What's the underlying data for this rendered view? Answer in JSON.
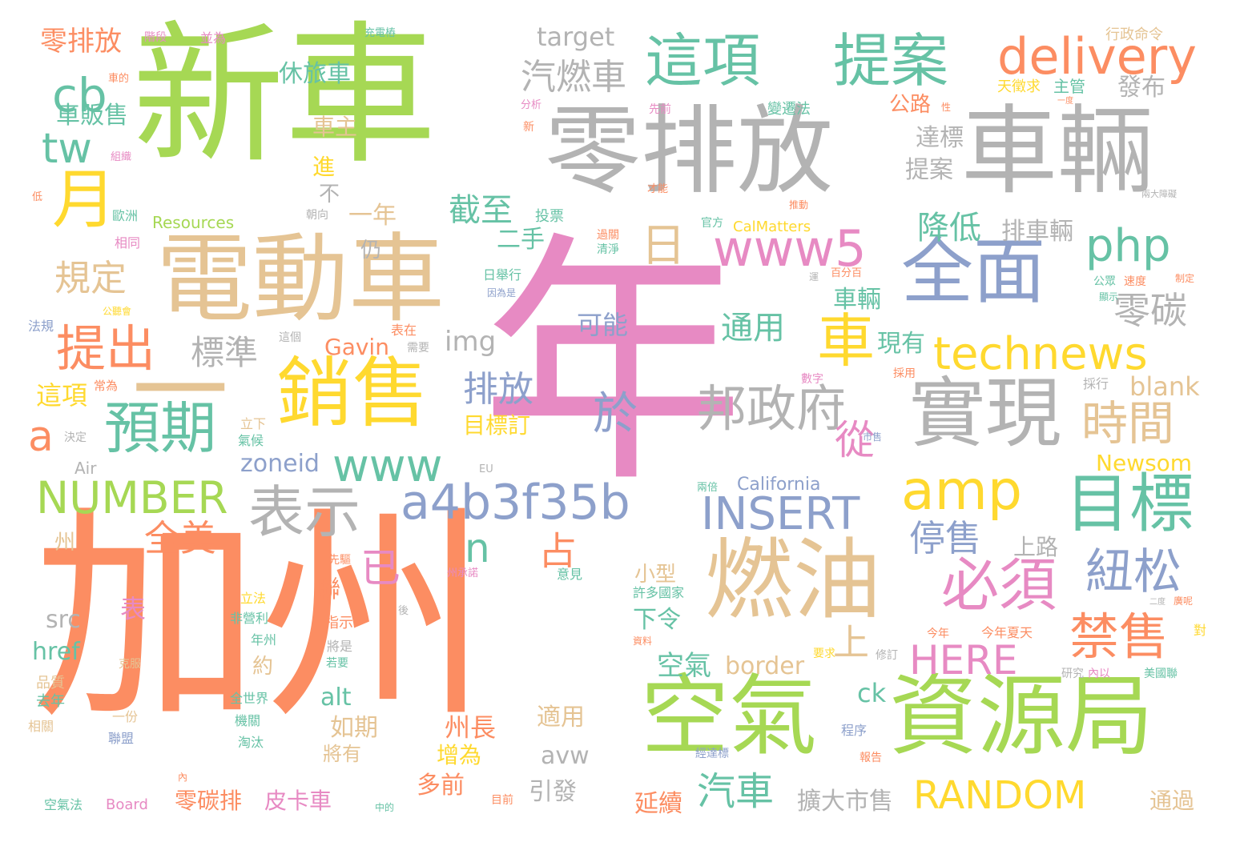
{
  "palette": {
    "pink": "#e78ac3",
    "orange": "#fc8d62",
    "green": "#a6d854",
    "gray": "#b3b3b3",
    "tan": "#e5c494",
    "teal": "#66c2a5",
    "blue": "#8da0cb",
    "yellow": "#ffd92f"
  },
  "words": [
    {
      "text": "年",
      "color": "pink"
    },
    {
      "text": "新車",
      "color": "green"
    },
    {
      "text": "加州",
      "color": "orange"
    },
    {
      "text": "零排放",
      "color": "gray"
    },
    {
      "text": "車輛",
      "color": "gray"
    },
    {
      "text": "電動車",
      "color": "tan"
    },
    {
      "text": "空氣",
      "color": "green"
    },
    {
      "text": "資源局",
      "color": "green"
    },
    {
      "text": "燃油",
      "color": "tan"
    },
    {
      "text": "銷售",
      "color": "yellow"
    },
    {
      "text": "一",
      "color": "tan"
    },
    {
      "text": "實現",
      "color": "gray"
    },
    {
      "text": "全面",
      "color": "blue"
    },
    {
      "text": "這項",
      "color": "teal"
    },
    {
      "text": "提案",
      "color": "teal"
    },
    {
      "text": "delivery",
      "color": "orange"
    },
    {
      "text": "目標",
      "color": "teal"
    },
    {
      "text": "表示",
      "color": "gray"
    },
    {
      "text": "預期",
      "color": "teal"
    },
    {
      "text": "邦政府",
      "color": "gray"
    },
    {
      "text": "必須",
      "color": "pink"
    },
    {
      "text": "a4b3f35b",
      "color": "blue"
    },
    {
      "text": "technews",
      "color": "yellow"
    },
    {
      "text": "www5",
      "color": "pink"
    },
    {
      "text": "www",
      "color": "teal"
    },
    {
      "text": "amp",
      "color": "yellow"
    },
    {
      "text": "INSERT",
      "color": "blue"
    },
    {
      "text": "RANDOM",
      "color": "yellow"
    },
    {
      "text": "NUMBER",
      "color": "green"
    },
    {
      "text": "HERE",
      "color": "pink"
    },
    {
      "text": "php",
      "color": "teal"
    },
    {
      "text": "月",
      "color": "yellow"
    },
    {
      "text": "車",
      "color": "yellow"
    },
    {
      "text": "提出",
      "color": "orange"
    },
    {
      "text": "紐松",
      "color": "blue"
    },
    {
      "text": "禁售",
      "color": "orange"
    },
    {
      "text": "時間",
      "color": "tan"
    },
    {
      "text": "cb",
      "color": "teal"
    },
    {
      "text": "tw",
      "color": "teal"
    },
    {
      "text": "a",
      "color": "orange"
    },
    {
      "text": "n",
      "color": "teal"
    },
    {
      "text": "日",
      "color": "tan"
    },
    {
      "text": "於",
      "color": "blue"
    },
    {
      "text": "排放",
      "color": "blue"
    },
    {
      "text": "規定",
      "color": "tan"
    },
    {
      "text": "標準",
      "color": "gray"
    },
    {
      "text": "截至",
      "color": "teal"
    },
    {
      "text": "汽燃車",
      "color": "gray"
    },
    {
      "text": "零碳",
      "color": "gray"
    },
    {
      "text": "降低",
      "color": "teal"
    },
    {
      "text": "通用",
      "color": "teal"
    },
    {
      "text": "已",
      "color": "pink"
    },
    {
      "text": "占",
      "color": "orange"
    },
    {
      "text": "全美",
      "color": "orange"
    },
    {
      "text": "停售",
      "color": "blue"
    },
    {
      "text": "汽車",
      "color": "teal"
    },
    {
      "text": "從",
      "color": "pink"
    },
    {
      "text": "上",
      "color": "tan"
    },
    {
      "text": "target",
      "color": "gray"
    },
    {
      "text": "零排放",
      "color": "orange"
    },
    {
      "text": "車販售",
      "color": "teal"
    },
    {
      "text": "休旅車",
      "color": "teal"
    },
    {
      "text": "車主",
      "color": "tan"
    },
    {
      "text": "進",
      "color": "yellow"
    },
    {
      "text": "不",
      "color": "gray"
    },
    {
      "text": "一年",
      "color": "tan"
    },
    {
      "text": "二手",
      "color": "teal"
    },
    {
      "text": "仍",
      "color": "gray"
    },
    {
      "text": "可能",
      "color": "blue"
    },
    {
      "text": "img",
      "color": "gray"
    },
    {
      "text": "Gavin",
      "color": "orange"
    },
    {
      "text": "這項",
      "color": "yellow"
    },
    {
      "text": "目標訂",
      "color": "yellow"
    },
    {
      "text": "zoneid",
      "color": "blue"
    },
    {
      "text": "現有",
      "color": "teal"
    },
    {
      "text": "車輛",
      "color": "teal"
    },
    {
      "text": "達標",
      "color": "gray"
    },
    {
      "text": "提案",
      "color": "gray"
    },
    {
      "text": "公路",
      "color": "orange"
    },
    {
      "text": "排車輛",
      "color": "gray"
    },
    {
      "text": "發布",
      "color": "gray"
    },
    {
      "text": "blank",
      "color": "tan"
    },
    {
      "text": "Newsom",
      "color": "yellow"
    },
    {
      "text": "California",
      "color": "blue"
    },
    {
      "text": "上路",
      "color": "gray"
    },
    {
      "text": "小型",
      "color": "tan"
    },
    {
      "text": "下令",
      "color": "teal"
    },
    {
      "text": "空氣",
      "color": "teal"
    },
    {
      "text": "border",
      "color": "tan"
    },
    {
      "text": "ck",
      "color": "teal"
    },
    {
      "text": "表",
      "color": "pink"
    },
    {
      "text": "src",
      "color": "gray"
    },
    {
      "text": "href",
      "color": "teal"
    },
    {
      "text": "alt",
      "color": "teal"
    },
    {
      "text": "如期",
      "color": "tan"
    },
    {
      "text": "州長",
      "color": "orange"
    },
    {
      "text": "增為",
      "color": "yellow"
    },
    {
      "text": "多前",
      "color": "orange"
    },
    {
      "text": "avw",
      "color": "gray"
    },
    {
      "text": "適用",
      "color": "tan"
    },
    {
      "text": "引發",
      "color": "gray"
    },
    {
      "text": "延續",
      "color": "orange"
    },
    {
      "text": "擴大市售",
      "color": "gray"
    },
    {
      "text": "零碳排",
      "color": "orange"
    },
    {
      "text": "皮卡車",
      "color": "pink"
    },
    {
      "text": "通過",
      "color": "tan"
    },
    {
      "text": "聯",
      "color": "orange"
    },
    {
      "text": "約",
      "color": "tan"
    },
    {
      "text": "將有",
      "color": "tan"
    },
    {
      "text": "州",
      "color": "tan"
    },
    {
      "text": "行政命令",
      "color": "tan"
    },
    {
      "text": "天徵求",
      "color": "yellow"
    },
    {
      "text": "主管",
      "color": "teal"
    },
    {
      "text": "變遷法",
      "color": "teal"
    },
    {
      "text": "充電樁",
      "color": "teal"
    },
    {
      "text": "階段",
      "color": "pink"
    },
    {
      "text": "並為",
      "color": "pink"
    },
    {
      "text": "車的",
      "color": "orange"
    },
    {
      "text": "分析",
      "color": "pink"
    },
    {
      "text": "新",
      "color": "orange"
    },
    {
      "text": "先前",
      "color": "pink"
    },
    {
      "text": "組織",
      "color": "pink"
    },
    {
      "text": "低",
      "color": "orange"
    },
    {
      "text": "歐洲",
      "color": "teal"
    },
    {
      "text": "Resources",
      "color": "green"
    },
    {
      "text": "投票",
      "color": "teal"
    },
    {
      "text": "相同",
      "color": "pink"
    },
    {
      "text": "朝向",
      "color": "gray"
    },
    {
      "text": "官方",
      "color": "teal"
    },
    {
      "text": "CalMatters",
      "color": "yellow"
    },
    {
      "text": "推動",
      "color": "orange"
    },
    {
      "text": "過關",
      "color": "orange"
    },
    {
      "text": "清淨",
      "color": "teal"
    },
    {
      "text": "日舉行",
      "color": "teal"
    },
    {
      "text": "因為是",
      "color": "blue"
    },
    {
      "text": "百分百",
      "color": "orange"
    },
    {
      "text": "公眾",
      "color": "teal"
    },
    {
      "text": "速度",
      "color": "orange"
    },
    {
      "text": "制定",
      "color": "orange"
    },
    {
      "text": "顯示",
      "color": "teal"
    },
    {
      "text": "法規",
      "color": "blue"
    },
    {
      "text": "公聽會",
      "color": "yellow"
    },
    {
      "text": "這個",
      "color": "gray"
    },
    {
      "text": "表在",
      "color": "orange"
    },
    {
      "text": "需要",
      "color": "gray"
    },
    {
      "text": "常為",
      "color": "orange"
    },
    {
      "text": "數字",
      "color": "pink"
    },
    {
      "text": "採用",
      "color": "orange"
    },
    {
      "text": "採行",
      "color": "gray"
    },
    {
      "text": "立下",
      "color": "tan"
    },
    {
      "text": "氣候",
      "color": "teal"
    },
    {
      "text": "決定",
      "color": "gray"
    },
    {
      "text": "Air",
      "color": "gray"
    },
    {
      "text": "EU",
      "color": "gray"
    },
    {
      "text": "市售",
      "color": "blue"
    },
    {
      "text": "兩倍",
      "color": "teal"
    },
    {
      "text": "先驅",
      "color": "orange"
    },
    {
      "text": "州承諾",
      "color": "pink"
    },
    {
      "text": "意見",
      "color": "teal"
    },
    {
      "text": "立法",
      "color": "yellow"
    },
    {
      "text": "非營利",
      "color": "teal"
    },
    {
      "text": "年州",
      "color": "teal"
    },
    {
      "text": "指示",
      "color": "orange"
    },
    {
      "text": "將是",
      "color": "gray"
    },
    {
      "text": "若要",
      "color": "teal"
    },
    {
      "text": "許多國家",
      "color": "teal"
    },
    {
      "text": "今年",
      "color": "orange"
    },
    {
      "text": "今年夏天",
      "color": "orange"
    },
    {
      "text": "要求",
      "color": "yellow"
    },
    {
      "text": "修訂",
      "color": "gray"
    },
    {
      "text": "研究",
      "color": "gray"
    },
    {
      "text": "內以",
      "color": "pink"
    },
    {
      "text": "美國聯",
      "color": "teal"
    },
    {
      "text": "資料",
      "color": "orange"
    },
    {
      "text": "品質",
      "color": "tan"
    },
    {
      "text": "去年",
      "color": "teal"
    },
    {
      "text": "相關",
      "color": "tan"
    },
    {
      "text": "一份",
      "color": "tan"
    },
    {
      "text": "聯盟",
      "color": "blue"
    },
    {
      "text": "全世界",
      "color": "teal"
    },
    {
      "text": "機關",
      "color": "teal"
    },
    {
      "text": "淘汰",
      "color": "teal"
    },
    {
      "text": "空氣法",
      "color": "teal"
    },
    {
      "text": "Board",
      "color": "pink"
    },
    {
      "text": "中的",
      "color": "teal"
    },
    {
      "text": "目前",
      "color": "orange"
    },
    {
      "text": "程序",
      "color": "blue"
    },
    {
      "text": "經達標",
      "color": "blue"
    },
    {
      "text": "報告",
      "color": "orange"
    },
    {
      "text": "對",
      "color": "yellow"
    },
    {
      "text": "後",
      "color": "gray"
    },
    {
      "text": "克服",
      "color": "tan"
    },
    {
      "text": "內",
      "color": "orange"
    },
    {
      "text": "性",
      "color": "orange"
    },
    {
      "text": "才能",
      "color": "orange"
    },
    {
      "text": "兩大障礙",
      "color": "gray"
    },
    {
      "text": "一度",
      "color": "orange"
    },
    {
      "text": "廣呢",
      "color": "orange"
    },
    {
      "text": "二度",
      "color": "gray"
    },
    {
      "text": "運",
      "color": "gray"
    }
  ]
}
